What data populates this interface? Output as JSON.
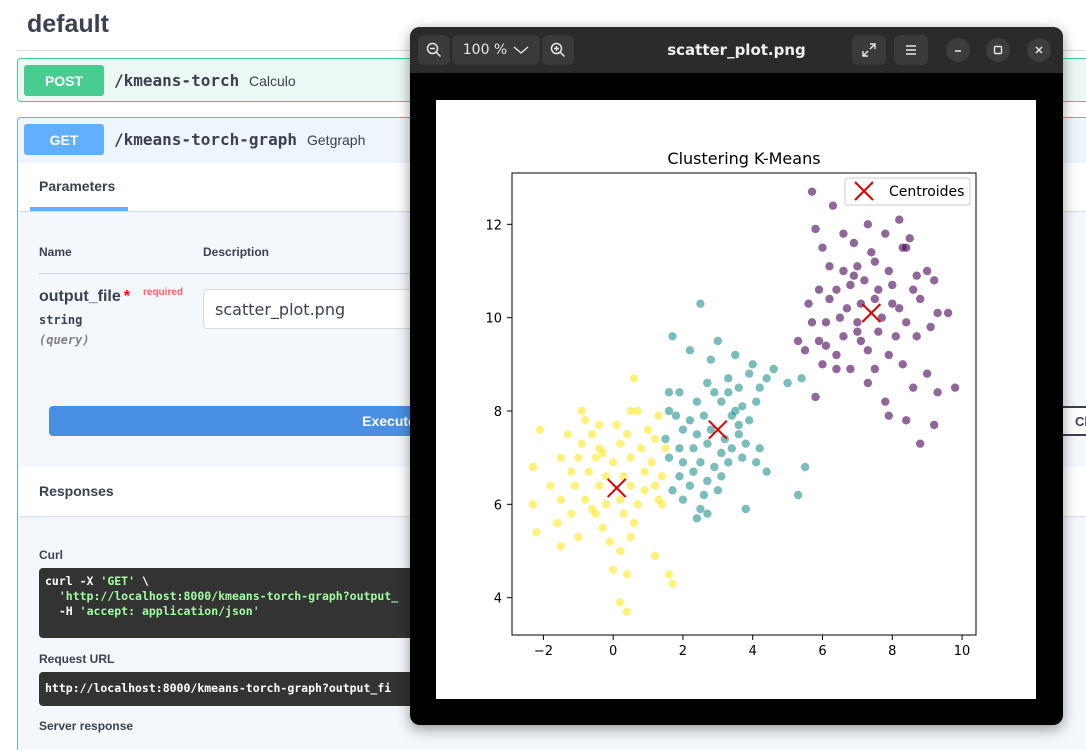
{
  "section": {
    "title": "default"
  },
  "post_op": {
    "method": "POST",
    "path": "/kmeans-torch",
    "summary": "Calculo"
  },
  "get_op": {
    "method": "GET",
    "path": "/kmeans-torch-graph",
    "summary": "Getgraph",
    "parameters_tab": "Parameters",
    "col_name": "Name",
    "col_description": "Description",
    "param": {
      "name": "output_file",
      "required_star": "*",
      "required_label": "required",
      "type": "string",
      "location": "(query)",
      "value": "scatter_plot.png"
    },
    "execute_label": "Execute",
    "clear_label": "Clear",
    "responses_title": "Responses",
    "curl_label": "Curl",
    "curl_line1": "curl -X ",
    "curl_method": "'GET'",
    "curl_cont": " \\",
    "curl_url": "'http://localhost:8000/kmeans-torch-graph?output_",
    "curl_h": "-H ",
    "curl_header": "'accept: application/json'",
    "request_url_label": "Request URL",
    "request_url": "http://localhost:8000/kmeans-torch-graph?output_fi",
    "server_response_label": "Server response"
  },
  "viewer": {
    "title": "scatter_plot.png",
    "zoom": "100 %",
    "icons": {
      "zoom_out": "zoom-out-icon",
      "zoom_dropdown": "chevron-down-icon",
      "zoom_in": "zoom-in-icon",
      "fullscreen": "fullscreen-icon",
      "menu": "hamburger-menu-icon",
      "minimize": "minimize-icon",
      "maximize": "maximize-icon",
      "close": "close-icon"
    }
  },
  "colors": {
    "post": "#49cc90",
    "get": "#61affe",
    "execute": "#4990e2",
    "cluster_purple": "#440154",
    "cluster_teal": "#21918c",
    "cluster_yellow": "#fde725",
    "centroid": "#e00000"
  },
  "chart_data": {
    "type": "scatter",
    "title": "Clustering K-Means",
    "xlim": [
      -2.9,
      10.4
    ],
    "ylim": [
      3.2,
      13.1
    ],
    "xticks": [
      -2,
      0,
      2,
      4,
      6,
      8,
      10
    ],
    "yticks": [
      4,
      6,
      8,
      10,
      12
    ],
    "xlabel": "",
    "ylabel": "",
    "grid": false,
    "legend": {
      "position": "top-right",
      "entries": [
        "Centroides"
      ]
    },
    "centroids": [
      [
        7.4,
        10.1
      ],
      [
        3.0,
        7.6
      ],
      [
        0.1,
        6.35
      ]
    ],
    "clusters": [
      {
        "color": "#440154",
        "points": [
          [
            5.7,
            12.7
          ],
          [
            6.3,
            12.4
          ],
          [
            7.3,
            12.0
          ],
          [
            8.2,
            12.1
          ],
          [
            5.8,
            11.9
          ],
          [
            6.0,
            11.5
          ],
          [
            6.6,
            11.8
          ],
          [
            6.9,
            11.6
          ],
          [
            7.8,
            11.8
          ],
          [
            8.5,
            11.7
          ],
          [
            8.3,
            11.5
          ],
          [
            6.2,
            11.1
          ],
          [
            6.6,
            11.0
          ],
          [
            7.0,
            11.1
          ],
          [
            7.5,
            11.2
          ],
          [
            7.9,
            11.0
          ],
          [
            8.4,
            11.5
          ],
          [
            8.7,
            10.9
          ],
          [
            9.2,
            10.8
          ],
          [
            5.9,
            10.6
          ],
          [
            6.4,
            10.6
          ],
          [
            6.8,
            10.7
          ],
          [
            7.2,
            10.8
          ],
          [
            7.6,
            10.6
          ],
          [
            8.0,
            10.7
          ],
          [
            8.6,
            10.6
          ],
          [
            5.6,
            10.3
          ],
          [
            6.2,
            10.4
          ],
          [
            6.7,
            10.2
          ],
          [
            7.1,
            10.3
          ],
          [
            7.5,
            10.4
          ],
          [
            8.2,
            10.2
          ],
          [
            8.8,
            10.4
          ],
          [
            9.6,
            10.1
          ],
          [
            5.7,
            9.9
          ],
          [
            6.1,
            9.9
          ],
          [
            6.5,
            10.0
          ],
          [
            7.0,
            9.9
          ],
          [
            7.7,
            10.0
          ],
          [
            8.4,
            9.9
          ],
          [
            9.1,
            9.8
          ],
          [
            5.9,
            9.5
          ],
          [
            6.6,
            9.6
          ],
          [
            7.1,
            9.5
          ],
          [
            7.6,
            9.7
          ],
          [
            8.1,
            9.6
          ],
          [
            8.7,
            9.6
          ],
          [
            5.5,
            9.3
          ],
          [
            6.4,
            9.2
          ],
          [
            7.3,
            9.3
          ],
          [
            7.9,
            9.2
          ],
          [
            6.0,
            9.0
          ],
          [
            6.8,
            8.9
          ],
          [
            7.5,
            8.9
          ],
          [
            8.3,
            9.0
          ],
          [
            9.0,
            8.8
          ],
          [
            7.3,
            8.6
          ],
          [
            8.6,
            8.5
          ],
          [
            9.8,
            8.5
          ],
          [
            5.8,
            8.3
          ],
          [
            7.8,
            8.2
          ],
          [
            9.3,
            8.4
          ],
          [
            7.9,
            7.9
          ],
          [
            8.4,
            7.8
          ],
          [
            9.2,
            7.7
          ],
          [
            8.8,
            7.3
          ],
          [
            6.1,
            9.4
          ],
          [
            7.0,
            9.7
          ],
          [
            8.0,
            10.3
          ],
          [
            6.9,
            10.9
          ],
          [
            7.4,
            11.4
          ],
          [
            9.0,
            11.0
          ],
          [
            6.4,
            8.9
          ],
          [
            5.3,
            9.5
          ],
          [
            9.3,
            10.1
          ]
        ]
      },
      {
        "color": "#21918c",
        "points": [
          [
            2.5,
            10.3
          ],
          [
            1.7,
            9.6
          ],
          [
            2.2,
            9.3
          ],
          [
            3.0,
            9.5
          ],
          [
            2.8,
            9.1
          ],
          [
            3.5,
            9.2
          ],
          [
            4.0,
            9.0
          ],
          [
            3.9,
            8.8
          ],
          [
            3.3,
            8.7
          ],
          [
            2.7,
            8.6
          ],
          [
            1.6,
            8.4
          ],
          [
            1.9,
            8.4
          ],
          [
            2.9,
            8.4
          ],
          [
            3.3,
            8.4
          ],
          [
            3.6,
            8.5
          ],
          [
            4.2,
            8.5
          ],
          [
            4.4,
            8.7
          ],
          [
            5.0,
            8.6
          ],
          [
            5.4,
            8.7
          ],
          [
            2.4,
            8.2
          ],
          [
            3.1,
            8.2
          ],
          [
            3.7,
            8.1
          ],
          [
            4.1,
            8.2
          ],
          [
            1.8,
            7.9
          ],
          [
            2.2,
            7.8
          ],
          [
            2.6,
            7.9
          ],
          [
            3.4,
            7.9
          ],
          [
            3.9,
            7.8
          ],
          [
            2.0,
            7.6
          ],
          [
            2.4,
            7.5
          ],
          [
            2.8,
            7.6
          ],
          [
            3.2,
            7.4
          ],
          [
            3.6,
            7.5
          ],
          [
            1.5,
            7.4
          ],
          [
            1.9,
            7.2
          ],
          [
            2.3,
            7.2
          ],
          [
            2.7,
            7.3
          ],
          [
            3.1,
            7.1
          ],
          [
            3.4,
            7.2
          ],
          [
            3.8,
            7.3
          ],
          [
            4.2,
            7.2
          ],
          [
            1.6,
            7.0
          ],
          [
            2.0,
            6.9
          ],
          [
            2.5,
            6.9
          ],
          [
            2.9,
            6.8
          ],
          [
            3.3,
            6.9
          ],
          [
            3.7,
            7.0
          ],
          [
            4.1,
            6.9
          ],
          [
            1.9,
            6.6
          ],
          [
            2.3,
            6.7
          ],
          [
            2.7,
            6.5
          ],
          [
            3.1,
            6.6
          ],
          [
            4.4,
            6.7
          ],
          [
            5.5,
            6.8
          ],
          [
            1.7,
            6.3
          ],
          [
            2.2,
            6.4
          ],
          [
            2.6,
            6.2
          ],
          [
            3.0,
            6.3
          ],
          [
            2.0,
            6.1
          ],
          [
            5.3,
            6.2
          ],
          [
            2.5,
            5.9
          ],
          [
            2.7,
            5.8
          ],
          [
            3.8,
            5.9
          ],
          [
            2.4,
            5.7
          ],
          [
            3.6,
            7.7
          ],
          [
            4.6,
            8.9
          ],
          [
            3.5,
            8.0
          ],
          [
            1.6,
            8.0
          ]
        ]
      },
      {
        "color": "#fde725",
        "points": [
          [
            0.6,
            8.7
          ],
          [
            -0.9,
            8.0
          ],
          [
            -0.8,
            7.8
          ],
          [
            0.5,
            8.0
          ],
          [
            0.7,
            8.0
          ],
          [
            1.3,
            7.9
          ],
          [
            -0.4,
            7.7
          ],
          [
            0.1,
            7.7
          ],
          [
            1.0,
            7.6
          ],
          [
            -2.1,
            7.6
          ],
          [
            -1.3,
            7.5
          ],
          [
            -0.6,
            7.5
          ],
          [
            0.4,
            7.5
          ],
          [
            1.2,
            7.4
          ],
          [
            -0.9,
            7.3
          ],
          [
            -0.4,
            7.2
          ],
          [
            0.2,
            7.3
          ],
          [
            0.8,
            7.2
          ],
          [
            1.5,
            7.2
          ],
          [
            -1.5,
            7.0
          ],
          [
            -1.0,
            7.0
          ],
          [
            -0.5,
            7.0
          ],
          [
            0.0,
            6.9
          ],
          [
            0.5,
            7.0
          ],
          [
            1.1,
            6.9
          ],
          [
            -2.3,
            6.8
          ],
          [
            -1.2,
            6.7
          ],
          [
            -0.7,
            6.7
          ],
          [
            -0.2,
            6.6
          ],
          [
            0.3,
            6.6
          ],
          [
            0.9,
            6.7
          ],
          [
            1.4,
            6.6
          ],
          [
            -1.8,
            6.4
          ],
          [
            -1.1,
            6.4
          ],
          [
            -0.4,
            6.4
          ],
          [
            0.5,
            6.4
          ],
          [
            1.2,
            6.4
          ],
          [
            -2.3,
            6.0
          ],
          [
            -1.5,
            6.1
          ],
          [
            -0.8,
            6.1
          ],
          [
            -0.2,
            6.0
          ],
          [
            0.2,
            6.1
          ],
          [
            0.7,
            6.0
          ],
          [
            1.3,
            6.1
          ],
          [
            -1.2,
            5.8
          ],
          [
            -0.5,
            5.8
          ],
          [
            0.3,
            5.8
          ],
          [
            -2.2,
            5.4
          ],
          [
            -1.6,
            5.6
          ],
          [
            -0.3,
            5.5
          ],
          [
            0.6,
            5.6
          ],
          [
            -1.0,
            5.3
          ],
          [
            -0.1,
            5.2
          ],
          [
            0.5,
            5.3
          ],
          [
            -1.5,
            5.1
          ],
          [
            0.2,
            5.0
          ],
          [
            1.2,
            4.9
          ],
          [
            0.0,
            4.6
          ],
          [
            0.4,
            4.5
          ],
          [
            1.6,
            4.5
          ],
          [
            1.7,
            4.3
          ],
          [
            0.2,
            3.9
          ],
          [
            0.4,
            3.7
          ],
          [
            -0.6,
            5.9
          ],
          [
            0.9,
            6.3
          ],
          [
            -0.3,
            7.1
          ],
          [
            1.4,
            6.0
          ]
        ]
      }
    ]
  }
}
